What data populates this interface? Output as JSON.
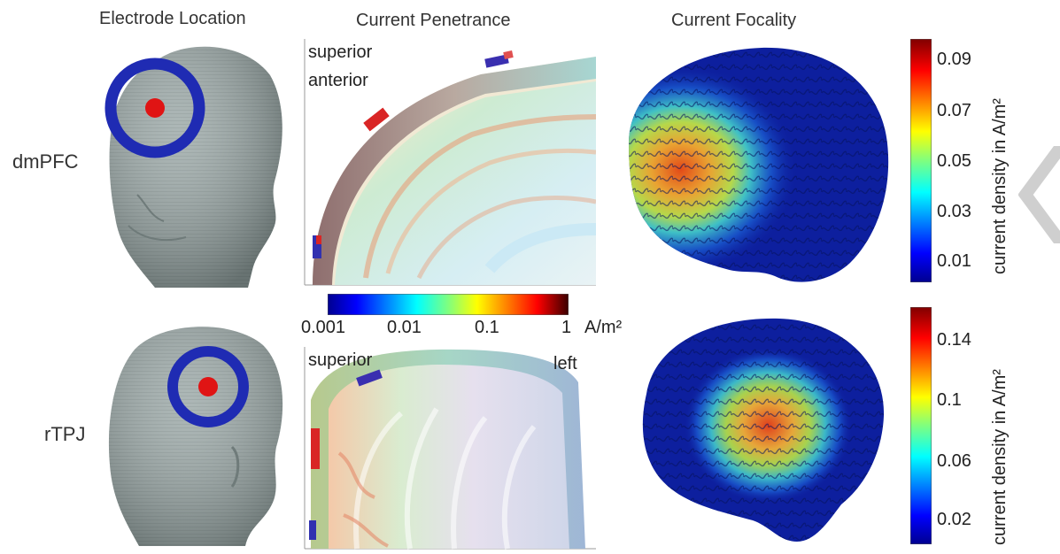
{
  "columns": {
    "electrode_location": "Electrode Location",
    "current_penetrance": "Current Penetrance",
    "current_focality": "Current Focality"
  },
  "rows": [
    {
      "label": "dmPFC"
    },
    {
      "label": "rTPJ"
    }
  ],
  "penetrance_panels": {
    "top": {
      "label1": "superior",
      "label2": "anterior"
    },
    "bottom": {
      "label_left": "superior",
      "label_right": "left"
    }
  },
  "penetrance_colorbar": {
    "ticks": [
      "0.001",
      "0.01",
      "0.1",
      "1"
    ],
    "unit": "A/m²"
  },
  "focality_colorbars": [
    {
      "ticks": [
        "0.09",
        "0.07",
        "0.05",
        "0.03",
        "0.01"
      ],
      "label": "current density in A/m²"
    },
    {
      "ticks": [
        "0.14",
        "0.1",
        "0.06",
        "0.02"
      ],
      "label": "current density in A/m²"
    }
  ],
  "colors": {
    "head": "#9aa7a6",
    "electrode_ring": "#1f2bb3",
    "electrode_center": "#e01414",
    "brain_base": "#0d1f9e"
  }
}
